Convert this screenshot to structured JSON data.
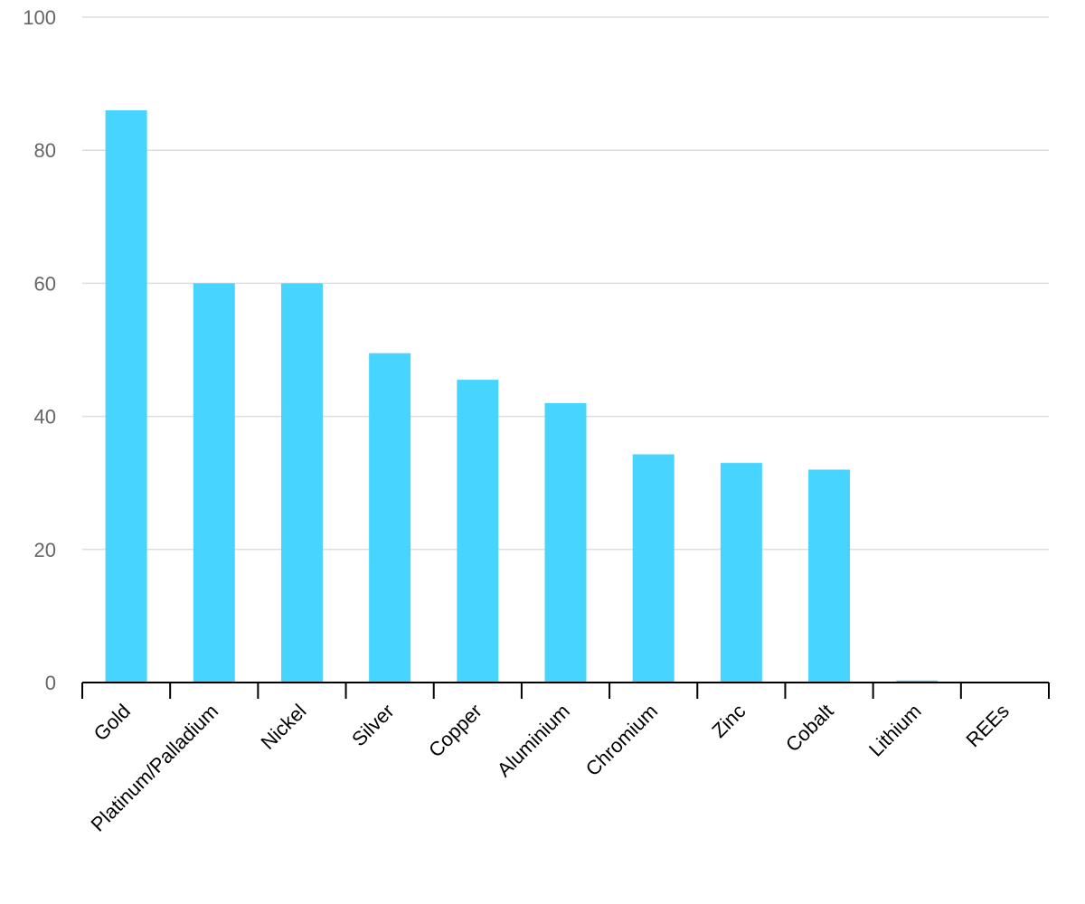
{
  "chart_data": {
    "type": "bar",
    "title": "",
    "xlabel": "",
    "ylabel": "",
    "categories": [
      "Gold",
      "Platinum/Palladium",
      "Nickel",
      "Silver",
      "Copper",
      "Aluminium",
      "Chromium",
      "Zinc",
      "Cobalt",
      "Lithium",
      "REEs"
    ],
    "values": [
      86,
      60,
      60,
      49.5,
      45.5,
      42,
      34.3,
      33,
      32,
      0.3,
      0
    ],
    "ylim": [
      0,
      100
    ],
    "yticks": [
      "0",
      "20",
      "40",
      "60",
      "80",
      "100"
    ],
    "grid": true,
    "bar_color": "#47d4ff",
    "legend": "none"
  }
}
